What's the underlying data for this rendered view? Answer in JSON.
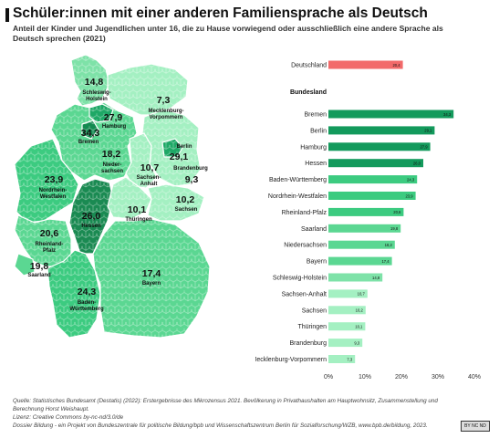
{
  "header": {
    "title": "Schüler:innen mit einer anderen Familiensprache als Deutsch",
    "subtitle": "Anteil der Kinder und Jugendlichen unter 16, die zu Hause vorwiegend oder ausschließlich eine andere Sprache als Deutsch sprechen (2021)"
  },
  "map": {
    "states": [
      {
        "id": "sh",
        "value": "14,8",
        "name": "Schleswig-Holstein",
        "color": "#7ee2a8"
      },
      {
        "id": "mv",
        "value": "7,3",
        "name": "Mecklenburg-Vorpommern",
        "color": "#a4f0c2"
      },
      {
        "id": "hh",
        "value": "27,9",
        "name": "Hamburg",
        "color": "#1ea866"
      },
      {
        "id": "hb",
        "value": "34,3",
        "name": "Bremen",
        "color": "#138a50"
      },
      {
        "id": "ni",
        "value": "18,2",
        "name": "Nieder-sachsen",
        "color": "#5bd792"
      },
      {
        "id": "be",
        "value": "29,1",
        "name": "Berlin",
        "color": "#1ea866"
      },
      {
        "id": "bb",
        "value": "9,3",
        "name": "Brandenburg",
        "color": "#a4f0c2"
      },
      {
        "id": "st",
        "value": "10,7",
        "name": "Sachsen-Anhalt",
        "color": "#a4f0c2"
      },
      {
        "id": "nw",
        "value": "23,9",
        "name": "Nordrhein-Westfalen",
        "color": "#3ccb80"
      },
      {
        "id": "he",
        "value": "26,0",
        "name": "Hessen",
        "color": "#1a8a52"
      },
      {
        "id": "th",
        "value": "10,1",
        "name": "Thüringen",
        "color": "#a4f0c2"
      },
      {
        "id": "sn",
        "value": "10,2",
        "name": "Sachsen",
        "color": "#a4f0c2"
      },
      {
        "id": "rp",
        "value": "20,6",
        "name": "Rheinland-Pfalz",
        "color": "#5bd792"
      },
      {
        "id": "sl",
        "value": "19,8",
        "name": "Saarland",
        "color": "#5bd792"
      },
      {
        "id": "bw",
        "value": "24,3",
        "name": "Baden-Württemberg",
        "color": "#3ccb80"
      },
      {
        "id": "by",
        "value": "17,4",
        "name": "Bayern",
        "color": "#5bd792"
      }
    ]
  },
  "chart_data": {
    "type": "bar",
    "orientation": "horizontal",
    "national": {
      "category": "Deutschland",
      "value": 20.4,
      "label": "20,4",
      "color": "#f26a6a"
    },
    "group_label": "Bundesland",
    "categories": [
      "Bremen",
      "Berlin",
      "Hamburg",
      "Hessen",
      "Baden-Württemberg",
      "Nordrhein-Westfalen",
      "Rheinland-Pfalz",
      "Saarland",
      "Niedersachsen",
      "Bayern",
      "Schleswig-Holstein",
      "Sachsen-Anhalt",
      "Sachsen",
      "Thüringen",
      "Brandenburg",
      "Mecklenburg-Vorpommern"
    ],
    "values": [
      34.3,
      29.1,
      27.9,
      26.0,
      24.3,
      23.9,
      20.6,
      19.8,
      18.2,
      17.4,
      14.8,
      10.7,
      10.2,
      10.1,
      9.3,
      7.3
    ],
    "value_labels": [
      "34,3",
      "29,1",
      "27,9",
      "26,0",
      "24,3",
      "23,9",
      "20,6",
      "19,8",
      "18,2",
      "17,4",
      "14,8",
      "10,7",
      "10,2",
      "10,1",
      "9,3",
      "7,3"
    ],
    "colors": [
      "#139a5c",
      "#139a5c",
      "#139a5c",
      "#139a5c",
      "#3ccb80",
      "#3ccb80",
      "#3ccb80",
      "#5bd792",
      "#5bd792",
      "#5bd792",
      "#7ee2a8",
      "#a4f0c2",
      "#a4f0c2",
      "#a4f0c2",
      "#a4f0c2",
      "#a4f0c2"
    ],
    "xlim": [
      0,
      40
    ],
    "xticks": [
      "0%",
      "10%",
      "20%",
      "30%",
      "40%"
    ],
    "grid": false
  },
  "footer": {
    "source": "Quelle: Statistisches Bundesamt (Destatis) (2022): Erstergebnisse des Mikrozensus 2021. Bevölkerung in Privathaushalten am Hauptwohnsitz, Zusammenstellung und",
    "source2": "Berechnung Horst Weishaupt.",
    "license": "Lizenz: Creative Commons by-nc-nd/3.0/de",
    "credit": "Dossier Bildung - ein Projekt von Bundeszentrale für politische Bildung/bpb und Wissenschaftszentrum Berlin für Sozialforschung/WZB, www.bpb.de/bildung, 2023.",
    "badge": "BY NC ND"
  }
}
